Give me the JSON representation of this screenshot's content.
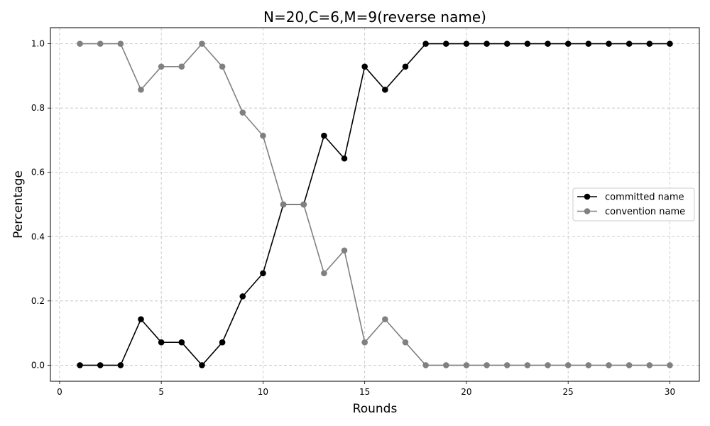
{
  "chart_data": {
    "type": "line",
    "title": "N=20,C=6,M=9(reverse name)",
    "xlabel": "Rounds",
    "ylabel": "Percentage",
    "xlim": [
      -0.45,
      31.45
    ],
    "ylim": [
      -0.05,
      1.05
    ],
    "xticks": [
      0,
      5,
      10,
      15,
      20,
      25,
      30
    ],
    "xtick_labels": [
      "0",
      "5",
      "10",
      "15",
      "20",
      "25",
      "30"
    ],
    "yticks": [
      0.0,
      0.2,
      0.4,
      0.6,
      0.8,
      1.0
    ],
    "ytick_labels": [
      "0.0",
      "0.2",
      "0.4",
      "0.6",
      "0.8",
      "1.0"
    ],
    "grid": true,
    "legend_position": "center-right",
    "x": [
      1,
      2,
      3,
      4,
      5,
      6,
      7,
      8,
      9,
      10,
      11,
      12,
      13,
      14,
      15,
      16,
      17,
      18,
      19,
      20,
      21,
      22,
      23,
      24,
      25,
      26,
      27,
      28,
      29,
      30
    ],
    "series": [
      {
        "name": "committed name",
        "color": "#000000",
        "marker": "circle",
        "values": [
          0,
          0,
          0,
          0.143,
          0.071,
          0.071,
          0,
          0.071,
          0.214,
          0.286,
          0.5,
          0.5,
          0.714,
          0.643,
          0.929,
          0.857,
          0.929,
          1,
          1,
          1,
          1,
          1,
          1,
          1,
          1,
          1,
          1,
          1,
          1,
          1
        ]
      },
      {
        "name": "convention name",
        "color": "#808080",
        "marker": "circle",
        "values": [
          1,
          1,
          1,
          0.857,
          0.929,
          0.929,
          1,
          0.929,
          0.786,
          0.714,
          0.5,
          0.5,
          0.286,
          0.357,
          0.071,
          0.143,
          0.071,
          0,
          0,
          0,
          0,
          0,
          0,
          0,
          0,
          0,
          0,
          0,
          0,
          0
        ]
      }
    ]
  }
}
